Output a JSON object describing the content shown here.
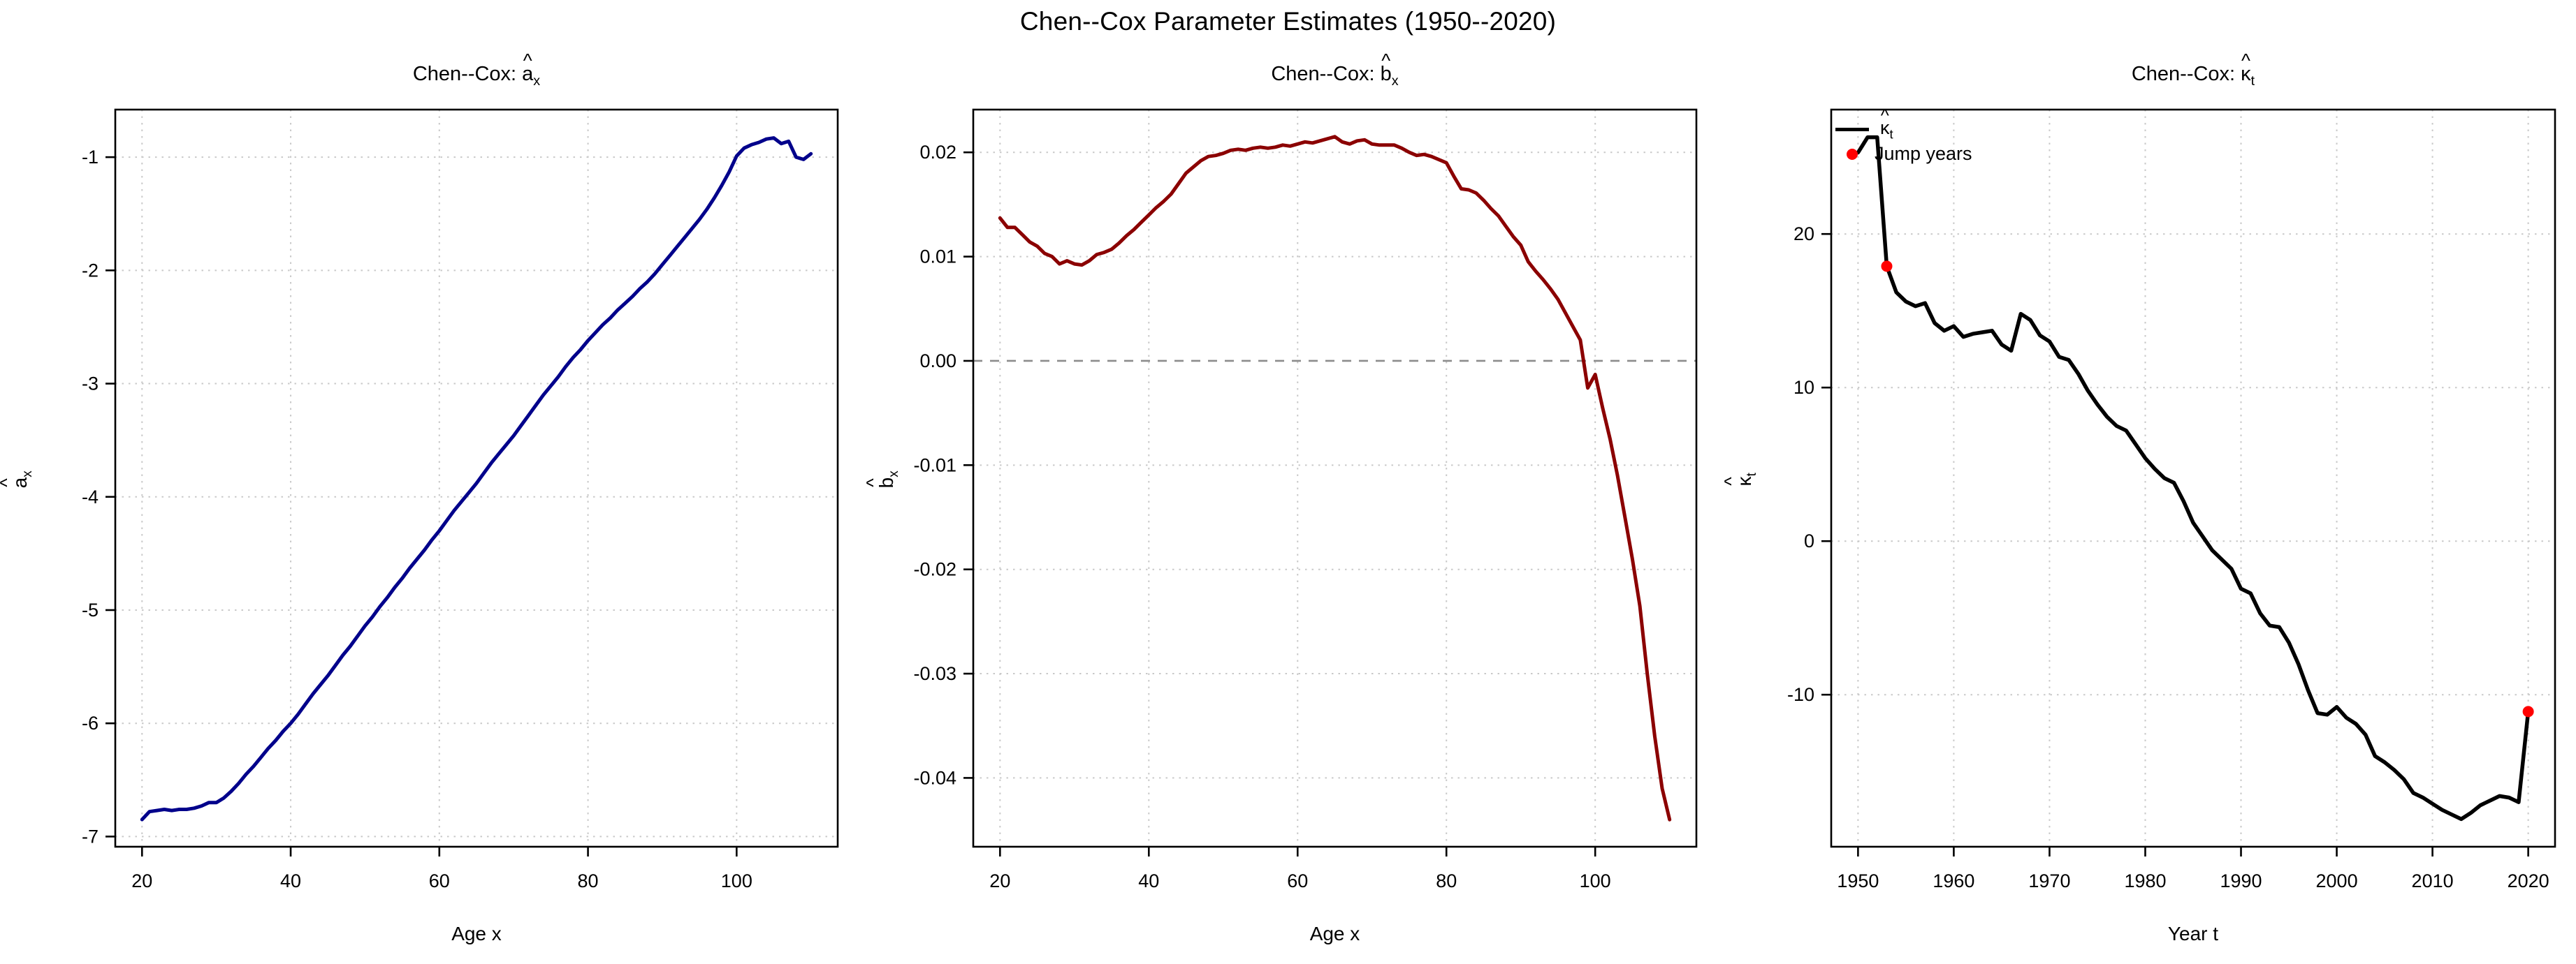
{
  "page_title": "Chen--Cox Parameter Estimates (1950--2020)",
  "colors": {
    "ax_line": "#00008B",
    "bx_line": "#8B0000",
    "kappa_line": "#000000",
    "jump_point": "#FF0000",
    "grid": "#C9C9C9",
    "zero_line": "#8C8C8C",
    "box": "#000000",
    "text": "#000000"
  },
  "legend": {
    "line_entry": {
      "prefix": "",
      "letter": "κ",
      "sub": "t"
    },
    "point_entry_label": "Jump years"
  },
  "chart_data": [
    {
      "type": "line",
      "title": {
        "prefix": "Chen--Cox: ",
        "letter": "a",
        "sub": "x"
      },
      "xlabel": "Age x",
      "ylabel": {
        "letter": "a",
        "sub": "x"
      },
      "color": "#00008B",
      "line_width": 5,
      "xlim": [
        16.4,
        113.6
      ],
      "ylim": [
        -7.09,
        -0.58
      ],
      "grid": true,
      "xticks": [
        {
          "v": 20,
          "label": "20"
        },
        {
          "v": 40,
          "label": "40"
        },
        {
          "v": 60,
          "label": "60"
        },
        {
          "v": 80,
          "label": "80"
        },
        {
          "v": 100,
          "label": "100"
        }
      ],
      "yticks": [
        {
          "v": -7,
          "label": "-7"
        },
        {
          "v": -6,
          "label": "-6"
        },
        {
          "v": -5,
          "label": "-5"
        },
        {
          "v": -4,
          "label": "-4"
        },
        {
          "v": -3,
          "label": "-3"
        },
        {
          "v": -2,
          "label": "-2"
        },
        {
          "v": -1,
          "label": "-1"
        }
      ],
      "x_start": 20,
      "x_step": 1,
      "values": [
        -6.85,
        -6.78,
        -6.77,
        -6.76,
        -6.77,
        -6.76,
        -6.76,
        -6.75,
        -6.73,
        -6.7,
        -6.7,
        -6.66,
        -6.6,
        -6.53,
        -6.45,
        -6.38,
        -6.3,
        -6.22,
        -6.15,
        -6.07,
        -6.0,
        -5.92,
        -5.83,
        -5.74,
        -5.66,
        -5.58,
        -5.49,
        -5.4,
        -5.32,
        -5.23,
        -5.14,
        -5.06,
        -4.97,
        -4.89,
        -4.8,
        -4.72,
        -4.63,
        -4.55,
        -4.47,
        -4.38,
        -4.3,
        -4.21,
        -4.12,
        -4.04,
        -3.96,
        -3.88,
        -3.79,
        -3.7,
        -3.62,
        -3.54,
        -3.46,
        -3.37,
        -3.28,
        -3.19,
        -3.1,
        -3.02,
        -2.94,
        -2.85,
        -2.77,
        -2.7,
        -2.62,
        -2.55,
        -2.48,
        -2.42,
        -2.35,
        -2.29,
        -2.23,
        -2.16,
        -2.1,
        -2.03,
        -1.95,
        -1.87,
        -1.79,
        -1.71,
        -1.63,
        -1.55,
        -1.46,
        -1.36,
        -1.25,
        -1.13,
        -0.99,
        -0.92,
        -0.89,
        -0.87,
        -0.84,
        -0.83,
        -0.88,
        -0.86,
        -1.0,
        -1.02,
        -0.97
      ]
    },
    {
      "type": "line",
      "title": {
        "prefix": "Chen--Cox: ",
        "letter": "b",
        "sub": "x"
      },
      "xlabel": "Age x",
      "ylabel": {
        "letter": "b",
        "sub": "x"
      },
      "color": "#8B0000",
      "line_width": 5,
      "xlim": [
        16.4,
        113.6
      ],
      "ylim": [
        -0.0466,
        0.0241
      ],
      "grid": true,
      "zero_line": 0,
      "xticks": [
        {
          "v": 20,
          "label": "20"
        },
        {
          "v": 40,
          "label": "40"
        },
        {
          "v": 60,
          "label": "60"
        },
        {
          "v": 80,
          "label": "80"
        },
        {
          "v": 100,
          "label": "100"
        }
      ],
      "yticks": [
        {
          "v": -0.04,
          "label": "-0.04"
        },
        {
          "v": -0.03,
          "label": "-0.03"
        },
        {
          "v": -0.02,
          "label": "-0.02"
        },
        {
          "v": -0.01,
          "label": "-0.01"
        },
        {
          "v": 0,
          "label": "0.00"
        },
        {
          "v": 0.01,
          "label": "0.01"
        },
        {
          "v": 0.02,
          "label": "0.02"
        }
      ],
      "x_start": 20,
      "x_step": 1,
      "values": [
        0.0137,
        0.0128,
        0.0128,
        0.0121,
        0.0114,
        0.011,
        0.0103,
        0.01,
        0.0093,
        0.0096,
        0.0093,
        0.0092,
        0.0096,
        0.0102,
        0.0104,
        0.0107,
        0.0113,
        0.012,
        0.0126,
        0.0133,
        0.014,
        0.0147,
        0.0153,
        0.016,
        0.017,
        0.018,
        0.0186,
        0.0192,
        0.0196,
        0.0197,
        0.0199,
        0.0202,
        0.0203,
        0.0202,
        0.0204,
        0.0205,
        0.0204,
        0.0205,
        0.0207,
        0.0206,
        0.0208,
        0.021,
        0.0209,
        0.0211,
        0.0213,
        0.0215,
        0.021,
        0.0208,
        0.0211,
        0.0212,
        0.0208,
        0.0207,
        0.0207,
        0.0207,
        0.0204,
        0.02,
        0.0197,
        0.0198,
        0.0196,
        0.0193,
        0.019,
        0.0177,
        0.0165,
        0.0164,
        0.0161,
        0.0154,
        0.0146,
        0.0139,
        0.0129,
        0.0119,
        0.0111,
        0.0095,
        0.0086,
        0.0078,
        0.0069,
        0.0059,
        0.0046,
        0.0033,
        0.002,
        -0.0026,
        -0.0013,
        -0.0045,
        -0.0075,
        -0.011,
        -0.015,
        -0.019,
        -0.0235,
        -0.03,
        -0.036,
        -0.041,
        -0.044
      ]
    },
    {
      "type": "line",
      "title": {
        "prefix": "Chen--Cox: ",
        "letter": "κ",
        "sub": "t"
      },
      "xlabel": "Year t",
      "ylabel": {
        "letter": "κ",
        "sub": "t"
      },
      "color": "#000000",
      "line_width": 5.5,
      "xlim": [
        1947.2,
        2022.8
      ],
      "ylim": [
        -19.9,
        28.1
      ],
      "grid": true,
      "legend_position": "topleft",
      "xticks": [
        {
          "v": 1950,
          "label": "1950"
        },
        {
          "v": 1960,
          "label": "1960"
        },
        {
          "v": 1970,
          "label": "1970"
        },
        {
          "v": 1980,
          "label": "1980"
        },
        {
          "v": 1990,
          "label": "1990"
        },
        {
          "v": 2000,
          "label": "2000"
        },
        {
          "v": 2010,
          "label": "2010"
        },
        {
          "v": 2020,
          "label": "2020"
        }
      ],
      "yticks": [
        {
          "v": -10,
          "label": "-10"
        },
        {
          "v": 0,
          "label": "0"
        },
        {
          "v": 10,
          "label": "10"
        },
        {
          "v": 20,
          "label": "20"
        }
      ],
      "x_start": 1950,
      "x_step": 1,
      "values": [
        25.3,
        26.3,
        26.3,
        17.9,
        16.2,
        15.6,
        15.3,
        15.5,
        14.2,
        13.7,
        14.0,
        13.3,
        13.5,
        13.6,
        13.7,
        12.8,
        12.4,
        14.8,
        14.4,
        13.4,
        13.0,
        12.0,
        11.8,
        10.9,
        9.8,
        8.9,
        8.1,
        7.5,
        7.2,
        6.3,
        5.4,
        4.7,
        4.1,
        3.8,
        2.6,
        1.2,
        0.3,
        -0.6,
        -1.2,
        -1.8,
        -3.1,
        -3.4,
        -4.7,
        -5.5,
        -5.6,
        -6.6,
        -8.0,
        -9.7,
        -11.2,
        -11.3,
        -10.8,
        -11.5,
        -11.9,
        -12.6,
        -14.0,
        -14.4,
        -14.9,
        -15.5,
        -16.4,
        -16.7,
        -17.1,
        -17.5,
        -17.8,
        -18.1,
        -17.7,
        -17.2,
        -16.9,
        -16.6,
        -16.7,
        -17.0,
        -11.1
      ],
      "jump_points": [
        {
          "x": 1953,
          "y": 17.9
        },
        {
          "x": 2020,
          "y": -11.1
        }
      ]
    }
  ]
}
